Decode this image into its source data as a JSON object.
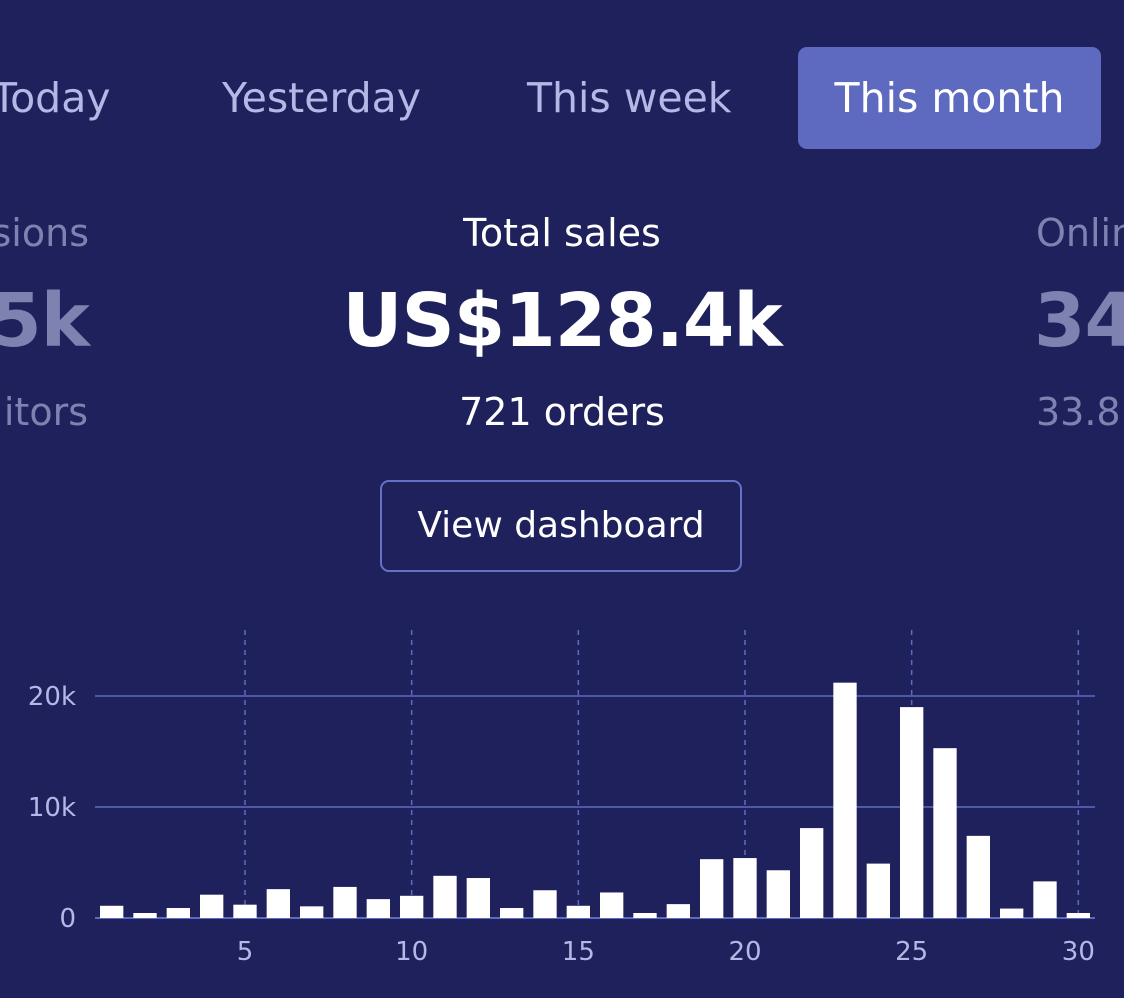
{
  "tabs": [
    {
      "label": "Today",
      "active": false
    },
    {
      "label": "Yesterday",
      "active": false
    },
    {
      "label": "This week",
      "active": false
    },
    {
      "label": "This month",
      "active": true
    }
  ],
  "stats": {
    "left": {
      "label": "sions",
      "value": "5k",
      "sub": "itors"
    },
    "center": {
      "label": "Total sales",
      "value": "US$128.4k",
      "sub": "721 orders"
    },
    "right": {
      "label": "Onlin",
      "value": "34",
      "sub": "33.8"
    }
  },
  "view_dashboard_label": "View dashboard",
  "colors": {
    "background": "#1f215c",
    "accent": "#5e6abf",
    "bar": "#ffffff",
    "grid": "#5e6abf",
    "muted_text": "#7f82b0"
  },
  "chart_data": {
    "type": "bar",
    "x": [
      1,
      2,
      3,
      4,
      5,
      6,
      7,
      8,
      9,
      10,
      11,
      12,
      13,
      14,
      15,
      16,
      17,
      18,
      19,
      20,
      21,
      22,
      23,
      24,
      25,
      26,
      27,
      28,
      29,
      30
    ],
    "values": [
      1100,
      450,
      900,
      2100,
      1200,
      2600,
      1050,
      2800,
      1700,
      2000,
      3800,
      3600,
      900,
      2500,
      1100,
      2300,
      450,
      1250,
      5300,
      5400,
      4300,
      8100,
      21200,
      4900,
      19000,
      15300,
      7400,
      850,
      3300,
      450
    ],
    "xtick_labels": [
      "5",
      "10",
      "15",
      "20",
      "25",
      "30"
    ],
    "xticks": [
      5,
      10,
      15,
      20,
      25,
      30
    ],
    "ytick_labels": [
      "0",
      "10k",
      "20k"
    ],
    "yticks": [
      0,
      10000,
      20000
    ],
    "ylim": [
      0,
      26000
    ],
    "xlim": [
      0.5,
      30.5
    ],
    "grid": {
      "horizontal": "solid",
      "vertical": "dashed"
    }
  }
}
